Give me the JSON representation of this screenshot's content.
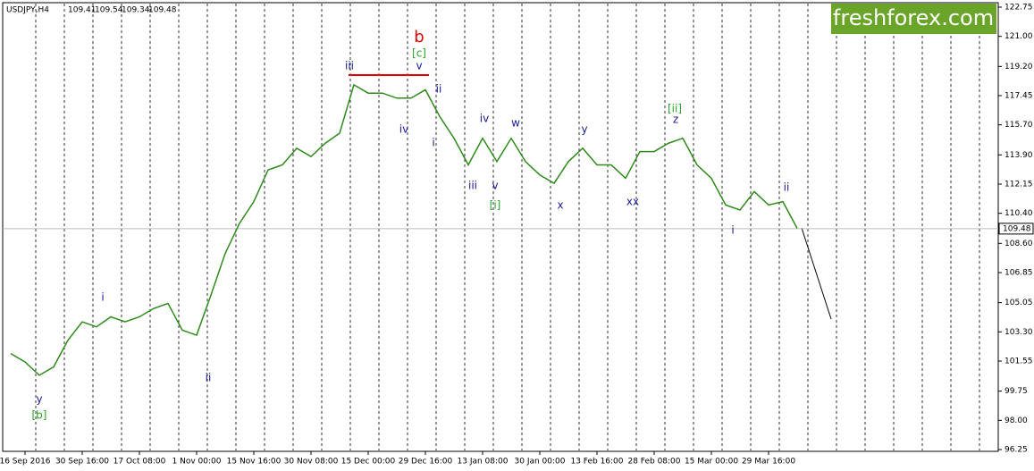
{
  "header": {
    "symbol": "USDJPY,H4",
    "ohlc": [
      109.41,
      109.54,
      109.34,
      109.48
    ]
  },
  "logo": "freshforex.com",
  "chart_data": {
    "type": "line",
    "categories": [
      null,
      "16 Sep 2016",
      null,
      null,
      null,
      "30 Sep 16:00",
      null,
      null,
      null,
      "17 Oct 08:00",
      null,
      null,
      null,
      "1 Nov 00:00",
      null,
      null,
      null,
      "15 Nov 16:00",
      null,
      null,
      null,
      "30 Nov 08:00",
      null,
      null,
      null,
      "15 Dec 00:00",
      null,
      null,
      null,
      "29 Dec 16:00",
      null,
      null,
      null,
      "13 Jan 08:00",
      null,
      null,
      null,
      "30 Jan 00:00",
      null,
      null,
      null,
      "13 Feb 16:00",
      null,
      null,
      null,
      "28 Feb 08:00",
      null,
      null,
      null,
      "15 Mar 00:00",
      null,
      null,
      null,
      "29 Mar 16:00",
      null,
      null
    ],
    "series": [
      {
        "name": "USDJPY",
        "color": "#2f8a1c",
        "values": [
          102.0,
          101.5,
          100.7,
          101.2,
          102.8,
          103.9,
          103.6,
          104.2,
          103.9,
          104.2,
          104.7,
          105.0,
          103.4,
          103.1,
          105.5,
          108.0,
          109.8,
          111.1,
          113.0,
          113.3,
          114.3,
          113.8,
          114.6,
          115.2,
          118.1,
          117.6,
          117.6,
          117.3,
          117.3,
          117.8,
          116.2,
          114.9,
          113.3,
          114.9,
          113.5,
          114.9,
          113.5,
          112.7,
          112.2,
          113.5,
          114.3,
          113.3,
          113.3,
          112.5,
          114.1,
          114.1,
          114.6,
          114.9,
          113.3,
          112.5,
          110.9,
          110.6,
          111.7,
          110.9,
          111.1,
          109.5
        ]
      }
    ],
    "current_price": 109.48,
    "ylim": [
      96.25,
      122.75
    ],
    "yticks": [
      {
        "value": 122.75,
        "label": "122.75"
      },
      {
        "value": 121,
        "label": "121.00"
      },
      {
        "value": 119.2,
        "label": "119.20"
      },
      {
        "value": 117.45,
        "label": "117.45"
      },
      {
        "value": 115.7,
        "label": "115.70"
      },
      {
        "value": 113.9,
        "label": "113.90"
      },
      {
        "value": 112.15,
        "label": "112.15"
      },
      {
        "value": 110.4,
        "label": "110.40"
      },
      {
        "value": 108.6,
        "label": "108.60"
      },
      {
        "value": 106.85,
        "label": "106.85"
      },
      {
        "value": 105.05,
        "label": "105.05"
      },
      {
        "value": 103.3,
        "label": "103.30"
      },
      {
        "value": 101.55,
        "label": "101.55"
      },
      {
        "value": 99.75,
        "label": "99.75"
      },
      {
        "value": 98,
        "label": "98.00"
      },
      {
        "value": 96.25,
        "label": "96.25"
      }
    ],
    "annotations": [
      {
        "text": "b",
        "color": "#e00000"
      },
      {
        "text": "[c]",
        "color": "#2ca02c"
      },
      {
        "text": "iii",
        "color": "#1a1a8c"
      },
      {
        "text": "v",
        "color": "#1a1a8c"
      },
      {
        "text": "ii",
        "color": "#1a1a8c"
      },
      {
        "text": "iv",
        "color": "#1a1a8c"
      },
      {
        "text": "i",
        "color": "#1a1a8c"
      },
      {
        "text": "iv",
        "color": "#1a1a8c"
      },
      {
        "text": "w",
        "color": "#1a1a8c"
      },
      {
        "text": "iii",
        "color": "#1a1a8c"
      },
      {
        "text": "v",
        "color": "#1a1a8c"
      },
      {
        "text": "[i]",
        "color": "#2ca02c"
      },
      {
        "text": "x",
        "color": "#1a1a8c"
      },
      {
        "text": "y",
        "color": "#1a1a8c"
      },
      {
        "text": "xx",
        "color": "#1a1a8c"
      },
      {
        "text": "[ii]",
        "color": "#2ca02c"
      },
      {
        "text": "z",
        "color": "#1a1a8c"
      },
      {
        "text": "i",
        "color": "#1a1a8c"
      },
      {
        "text": "ii",
        "color": "#1a1a8c"
      },
      {
        "text": "i",
        "color": "#1a1a8c"
      },
      {
        "text": "ii",
        "color": "#1a1a8c"
      },
      {
        "text": "y",
        "color": "#1a1a8c"
      },
      {
        "text": "[b]",
        "color": "#2ca02c"
      }
    ]
  }
}
